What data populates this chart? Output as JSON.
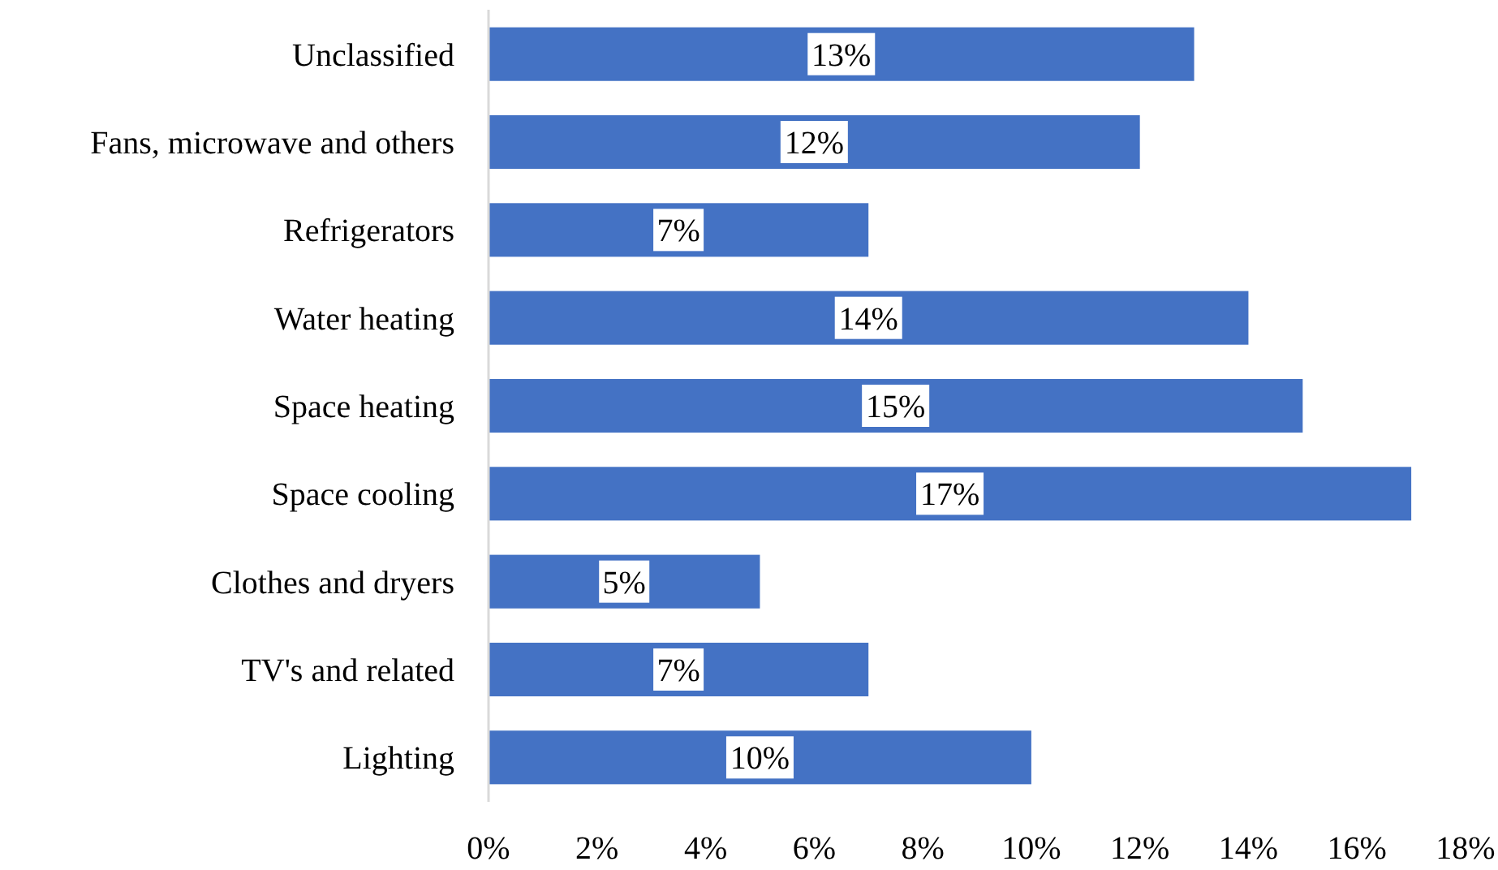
{
  "chart_data": {
    "type": "bar",
    "orientation": "horizontal",
    "categories": [
      "Unclassified",
      "Fans, microwave and others",
      "Refrigerators",
      "Water heating",
      "Space heating",
      "Space cooling",
      "Clothes and dryers",
      "TV's and related",
      "Lighting"
    ],
    "values": [
      13,
      12,
      7,
      14,
      15,
      17,
      5,
      7,
      10
    ],
    "value_labels": [
      "13%",
      "12%",
      "7%",
      "14%",
      "15%",
      "17%",
      "5%",
      "7%",
      "10%"
    ],
    "color": "#4472c4",
    "xlim": [
      0,
      18
    ],
    "xticks": [
      {
        "value": 0,
        "label": "0%"
      },
      {
        "value": 2,
        "label": "2%"
      },
      {
        "value": 4,
        "label": "4%"
      },
      {
        "value": 6,
        "label": "6%"
      },
      {
        "value": 8,
        "label": "8%"
      },
      {
        "value": 10,
        "label": "10%"
      },
      {
        "value": 12,
        "label": "12%"
      },
      {
        "value": 14,
        "label": "14%"
      },
      {
        "value": 16,
        "label": "16%"
      },
      {
        "value": 18,
        "label": "18%"
      }
    ],
    "grid": false
  }
}
